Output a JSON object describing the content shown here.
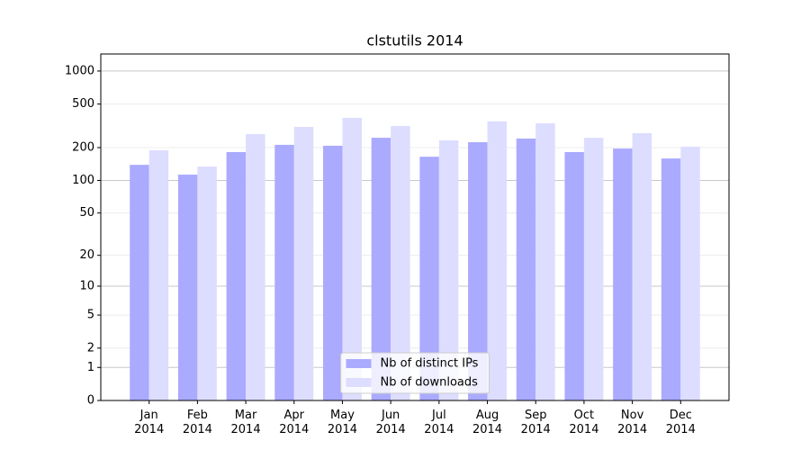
{
  "chart_data": {
    "type": "bar",
    "title": "clstutils 2014",
    "categories": [
      "Jan\n2014",
      "Feb\n2014",
      "Mar\n2014",
      "Apr\n2014",
      "May\n2014",
      "Jun\n2014",
      "Jul\n2014",
      "Aug\n2014",
      "Sep\n2014",
      "Oct\n2014",
      "Nov\n2014",
      "Dec\n2014"
    ],
    "series": [
      {
        "name": "Nb of distinct IPs",
        "color": "#aaaaff",
        "values": [
          139,
          113,
          182,
          212,
          208,
          246,
          165,
          224,
          242,
          182,
          196,
          159
        ]
      },
      {
        "name": "Nb of downloads",
        "color": "#ddddff",
        "values": [
          189,
          134,
          266,
          309,
          374,
          315,
          233,
          347,
          334,
          246,
          271,
          204
        ]
      }
    ],
    "scale": "log1p",
    "ylim": [
      0,
      1430
    ],
    "yticks": [
      0,
      1,
      2,
      5,
      10,
      20,
      50,
      100,
      200,
      500,
      1000
    ],
    "grid": true,
    "legend": "lower center"
  }
}
